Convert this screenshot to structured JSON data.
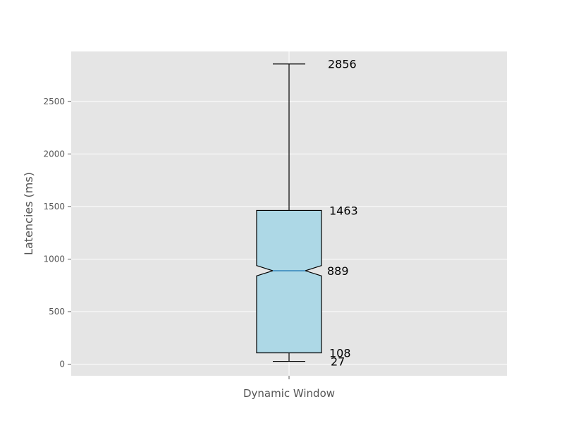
{
  "chart_data": {
    "type": "boxplot",
    "title": "",
    "xlabel": "",
    "ylabel": "Latencies (ms)",
    "categories": [
      "Dynamic Window"
    ],
    "ylim": [
      -110,
      2975
    ],
    "yticks": [
      0,
      500,
      1000,
      1500,
      2000,
      2500
    ],
    "grid": true,
    "notch": true,
    "box_color": "#add8e6",
    "median_color": "#1f77b4",
    "background_color": "#e5e5e5",
    "boxes": [
      {
        "category": "Dynamic Window",
        "whisker_low": 27,
        "q1": 108,
        "median": 889,
        "q3": 1463,
        "whisker_high": 2856,
        "notch_low": 840,
        "notch_high": 938
      }
    ],
    "annotations": [
      {
        "text": "2856",
        "value": 2856
      },
      {
        "text": "1463",
        "value": 1463
      },
      {
        "text": "889",
        "value": 889
      },
      {
        "text": "108",
        "value": 108
      },
      {
        "text": "27",
        "value": 27
      }
    ]
  }
}
